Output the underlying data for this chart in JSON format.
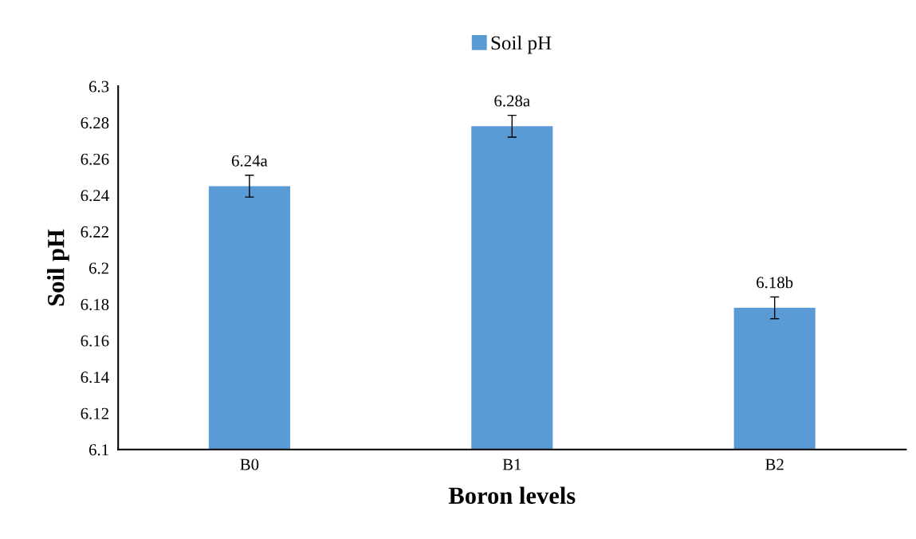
{
  "chart_data": {
    "type": "bar",
    "xlabel": "Boron levels",
    "ylabel": "Soil pH",
    "categories": [
      "B0",
      "B1",
      "B2"
    ],
    "series": [
      {
        "name": "Soil pH",
        "color": "#5b9bd5",
        "values": [
          6.245,
          6.278,
          6.178
        ],
        "errors": [
          0.006,
          0.006,
          0.006
        ],
        "value_labels": [
          "6.24a",
          "6.28a",
          "6.18b"
        ]
      }
    ],
    "ylim": [
      6.1,
      6.3
    ],
    "yticks": [
      6.1,
      6.12,
      6.14,
      6.16,
      6.18,
      6.2,
      6.22,
      6.24,
      6.26,
      6.28,
      6.3
    ],
    "grid": false,
    "legend": "top"
  }
}
